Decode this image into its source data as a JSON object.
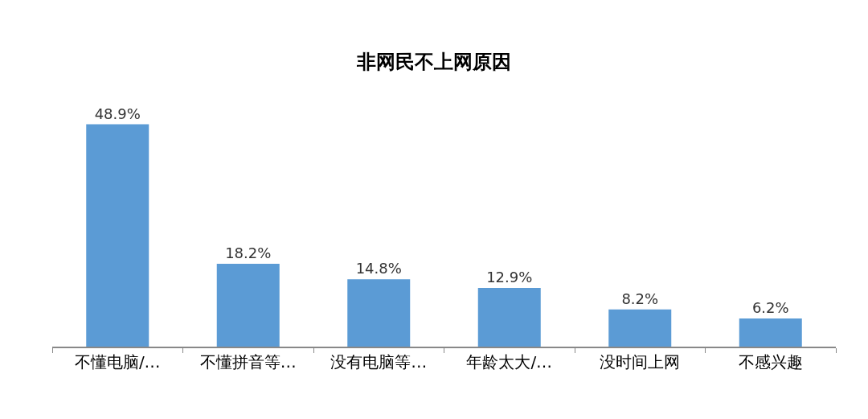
{
  "chart_data": {
    "type": "bar",
    "title": "非网民不上网原因",
    "categories": [
      "不懂电脑/…",
      "不懂拼音等…",
      "没有电脑等…",
      "年龄太大/…",
      "没时间上网",
      "不感兴趣"
    ],
    "values": [
      48.9,
      18.2,
      14.8,
      12.9,
      8.2,
      6.2
    ],
    "value_labels": [
      "48.9%",
      "18.2%",
      "14.8%",
      "12.9%",
      "8.2%",
      "6.2%"
    ],
    "color": "#5b9bd5",
    "grid": false,
    "legend": false
  }
}
